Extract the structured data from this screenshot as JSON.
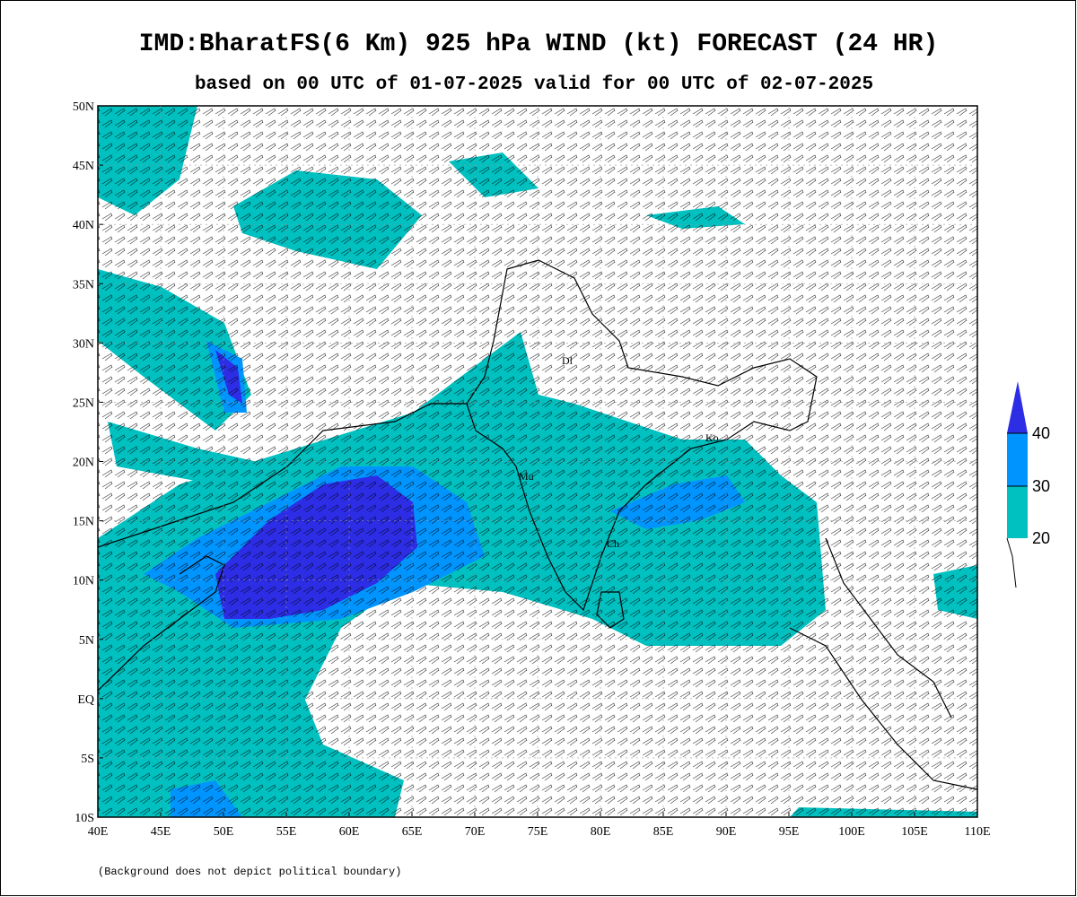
{
  "title": "IMD:BharatFS(6 Km) 925 hPa WIND (kt) FORECAST (24 HR)",
  "subtitle": "based on 00 UTC of 01-07-2025 valid for 00 UTC of 02-07-2025",
  "x_axis": {
    "labels": [
      "40E",
      "45E",
      "50E",
      "55E",
      "60E",
      "65E",
      "70E",
      "75E",
      "80E",
      "85E",
      "90E",
      "95E",
      "100E",
      "105E",
      "110E"
    ]
  },
  "y_axis": {
    "labels": [
      "50N",
      "45N",
      "40N",
      "35N",
      "30N",
      "25N",
      "20N",
      "15N",
      "10N",
      "5N",
      "EQ",
      "5S",
      "10S"
    ]
  },
  "legend": {
    "levels": [
      20,
      30,
      40
    ]
  },
  "cities": [
    "Dl",
    "Ko",
    "Mu",
    "Ch"
  ],
  "footnote": "(Background does not depict political boundary)"
}
